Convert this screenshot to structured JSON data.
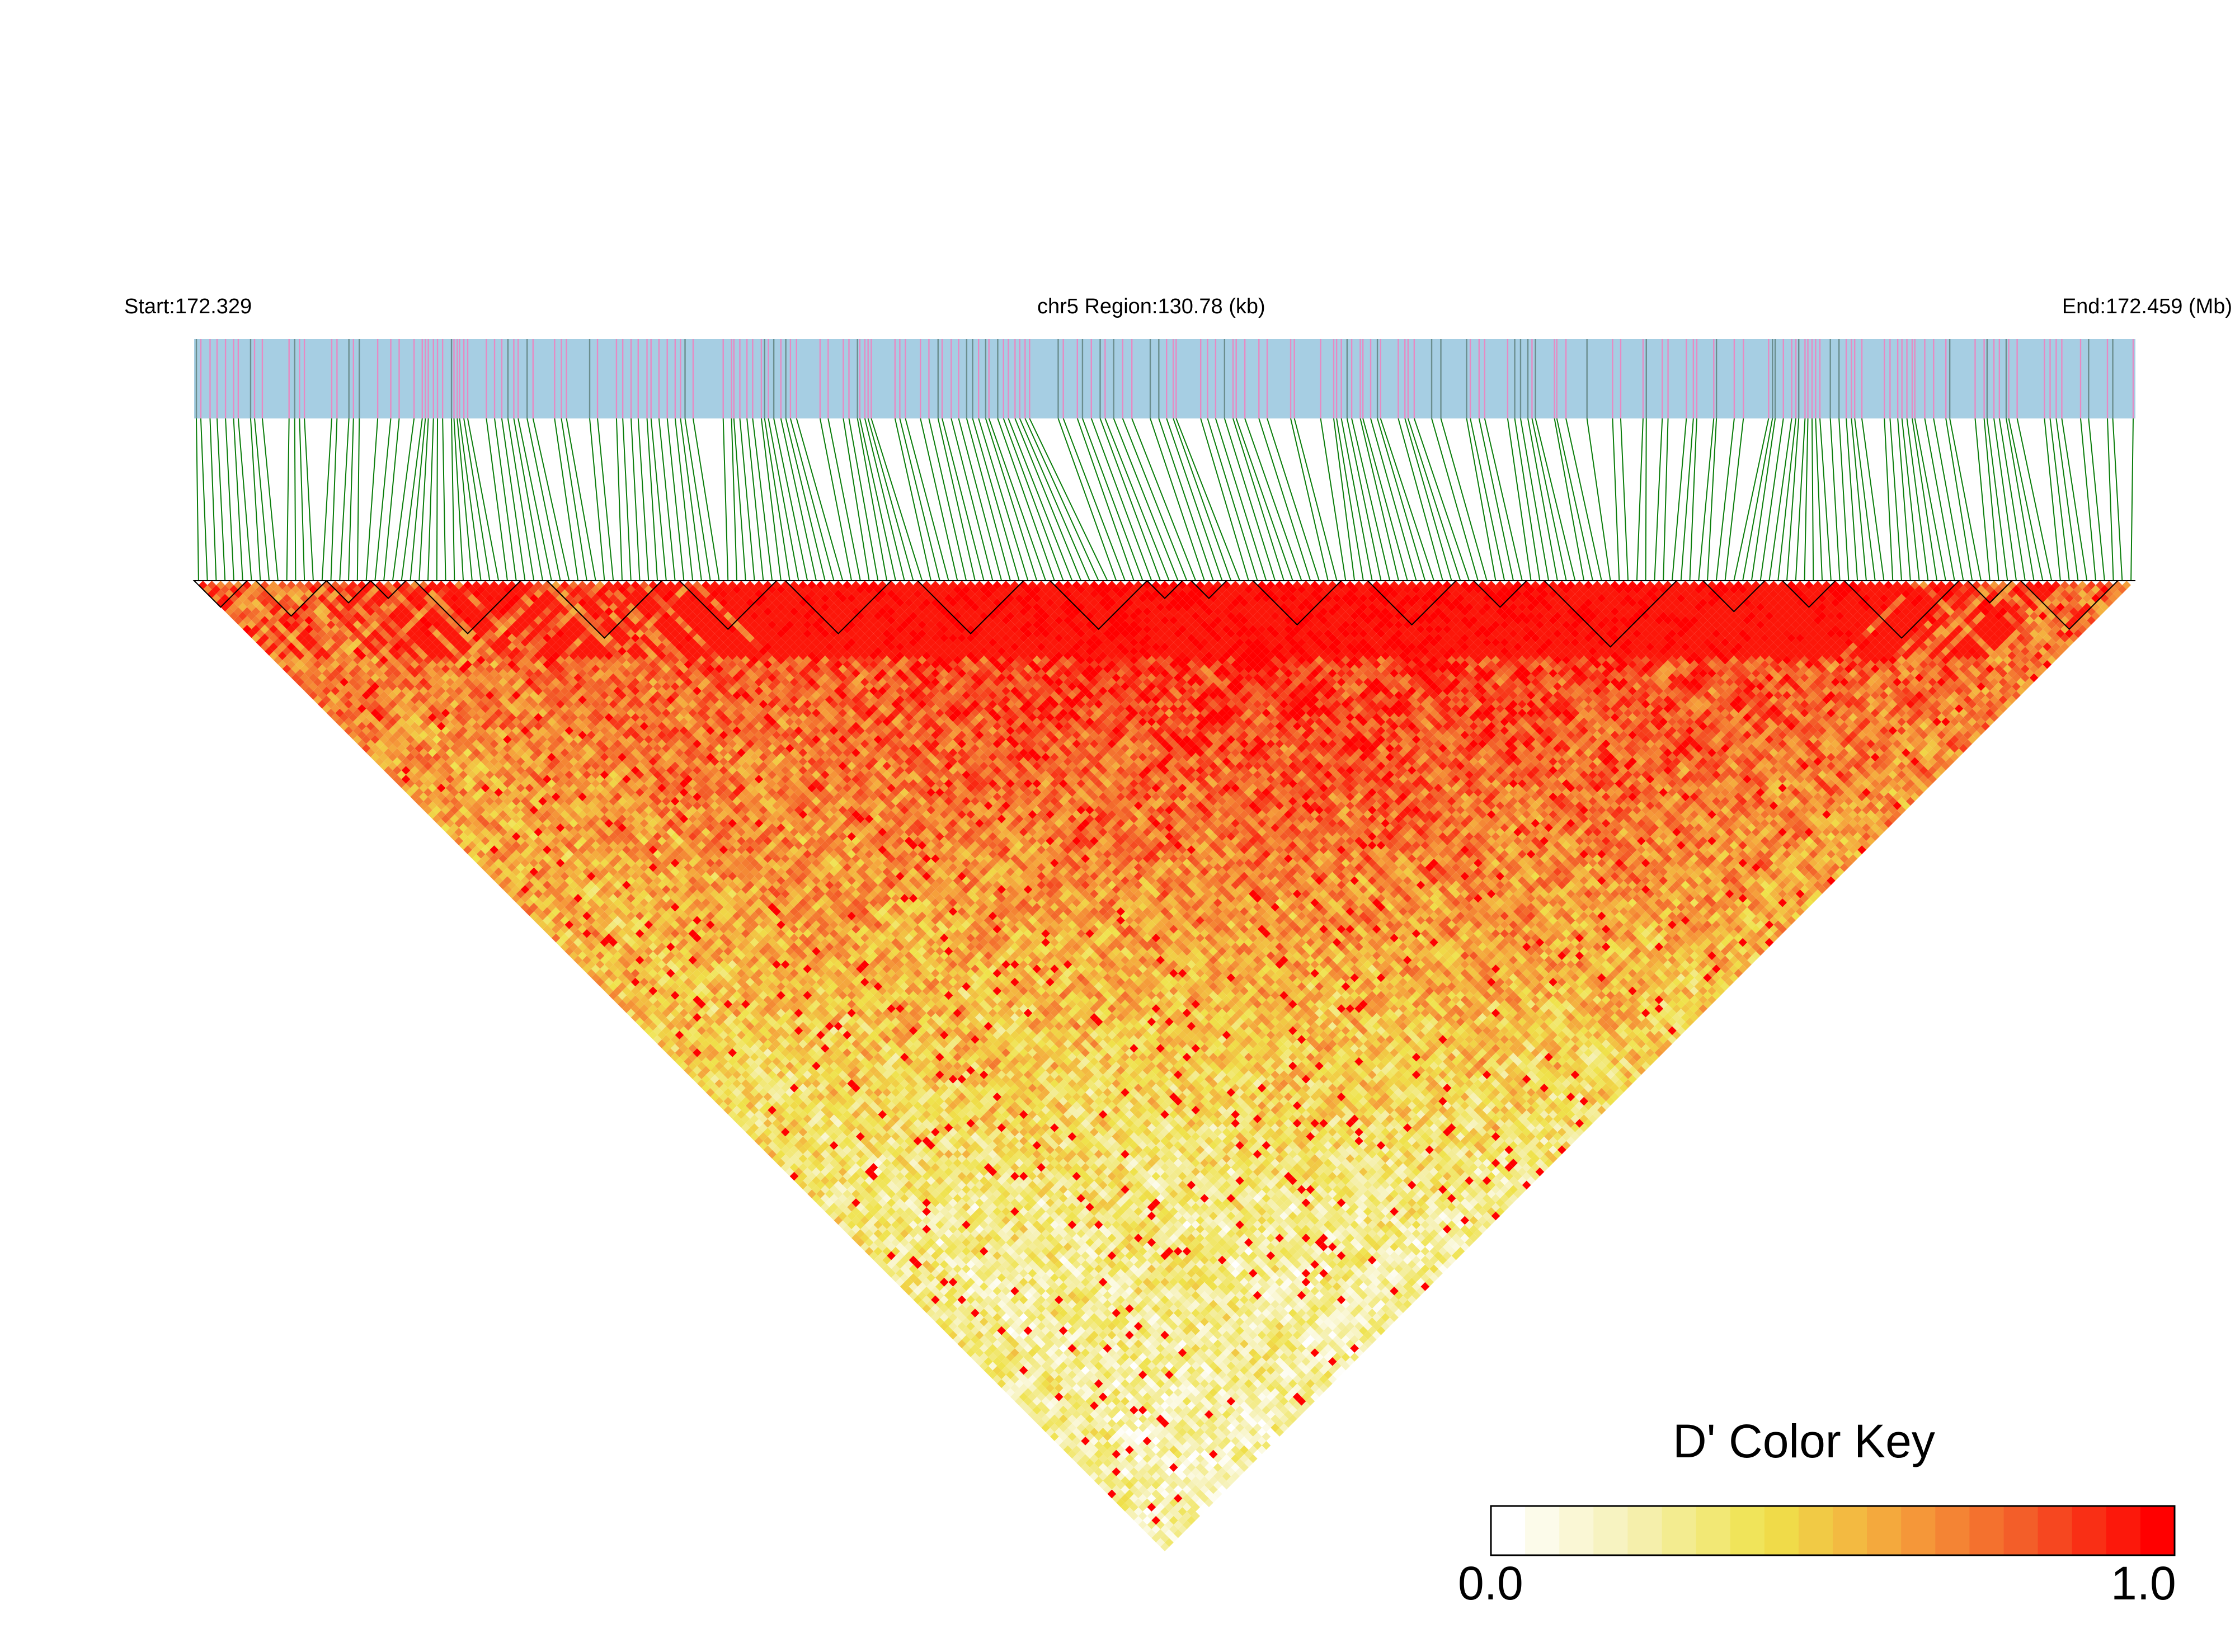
{
  "chart_data": {
    "type": "heatmap",
    "subtype": "linkage-disequilibrium triangle",
    "header": {
      "start_label": "Start:172.329",
      "center_label": "chr5 Region:130.78 (kb)",
      "end_label": "End:172.459 (Mb)"
    },
    "region": {
      "chromosome": "chr5",
      "start_mb": 172.329,
      "end_mb": 172.459,
      "length_kb": 130.78
    },
    "marker_track_colors": {
      "background": "#a6cee3",
      "variant_a": "#e78ac3",
      "variant_b": "#6b8e8e"
    },
    "connector_color": "#0a7d0a",
    "color_key": {
      "title": "D' Color Key",
      "min_label": "0.0",
      "max_label": "1.0",
      "range": [
        0.0,
        1.0
      ],
      "colors": [
        "#ffffff",
        "#f5f0b0",
        "#efe24a",
        "#f5a23c",
        "#f35a28",
        "#ff0000"
      ]
    },
    "notes": "Pairwise D' values between several hundred SNPs; strong LD (red) in the central/upper region, weaker LD (yellow/white) toward the lower-left edge."
  }
}
